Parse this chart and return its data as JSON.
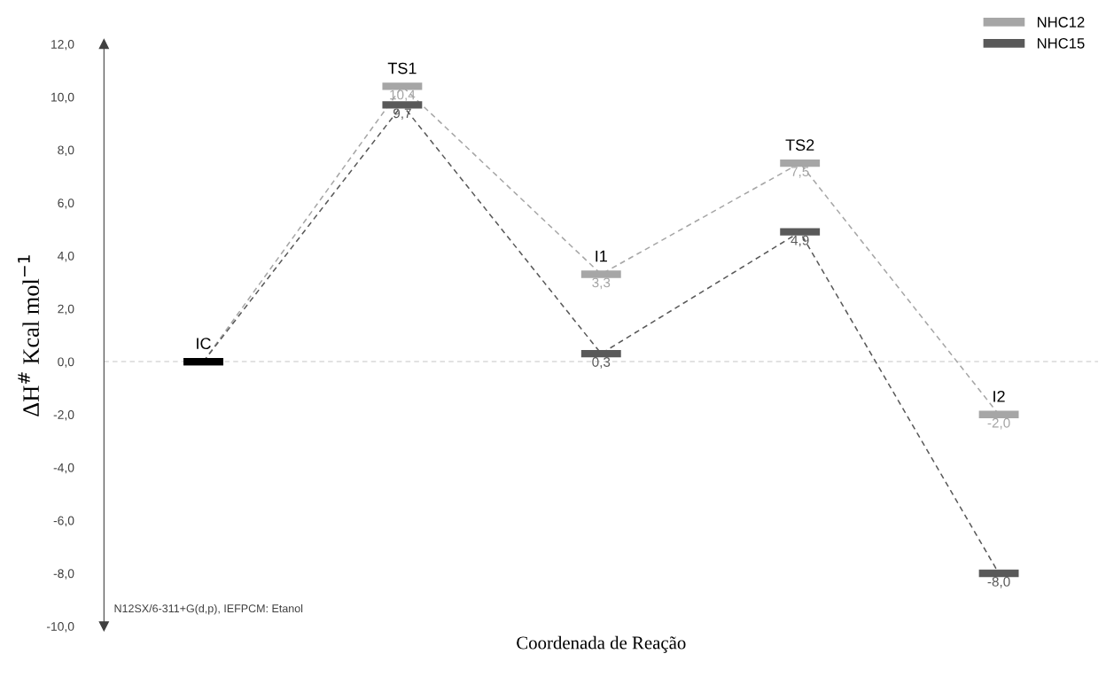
{
  "chart_data": {
    "type": "line",
    "xlabel": "Coordenada de Reação",
    "ylabel": "ΔH$^{#}$ Kcal mol$^{−1}$",
    "categories": [
      "IC",
      "TS1",
      "I1",
      "TS2",
      "I2"
    ],
    "series": [
      {
        "name": "NHC12",
        "color": "#a6a6a6",
        "colors": [
          "#000000",
          "#a6a6a6",
          "#a6a6a6",
          "#a6a6a6",
          "#a6a6a6"
        ],
        "values": [
          0,
          10.4,
          3.3,
          7.5,
          -2.0
        ],
        "value_labels": [
          null,
          "10,4",
          "3,3",
          "7,5",
          "-2,0"
        ]
      },
      {
        "name": "NHC15",
        "color": "#595959",
        "colors": [
          "#000000",
          "#595959",
          "#595959",
          "#595959",
          "#595959"
        ],
        "values": [
          0,
          9.7,
          0.3,
          4.9,
          -8.0
        ],
        "value_labels": [
          null,
          "9,7",
          "0,3",
          "4,9",
          "-8,0"
        ]
      }
    ],
    "line_style": "dashed",
    "grid": false,
    "legend": "top right",
    "ylim": [
      -10,
      12
    ],
    "yticks": [
      {
        "value": -10,
        "label": "-10,0"
      },
      {
        "value": -8,
        "label": "-8,0"
      },
      {
        "value": -6,
        "label": "-6,0"
      },
      {
        "value": -4,
        "label": "-4,0"
      },
      {
        "value": -2,
        "label": "-2,0"
      },
      {
        "value": 0,
        "label": "0,0"
      },
      {
        "value": 2,
        "label": "2,0"
      },
      {
        "value": 4,
        "label": "4,0"
      },
      {
        "value": 6,
        "label": "6,0"
      },
      {
        "value": 8,
        "label": "8,0"
      },
      {
        "value": 10,
        "label": "10,0"
      },
      {
        "value": 12,
        "label": "12,0"
      }
    ],
    "ref_lines": [
      {
        "axis": "y",
        "value": 0,
        "color": "#d9d9d9",
        "line_style": "dashed"
      }
    ],
    "annotations": [
      "N12SX/6-311+G(d,p), IEFPCM: Etanol"
    ]
  }
}
